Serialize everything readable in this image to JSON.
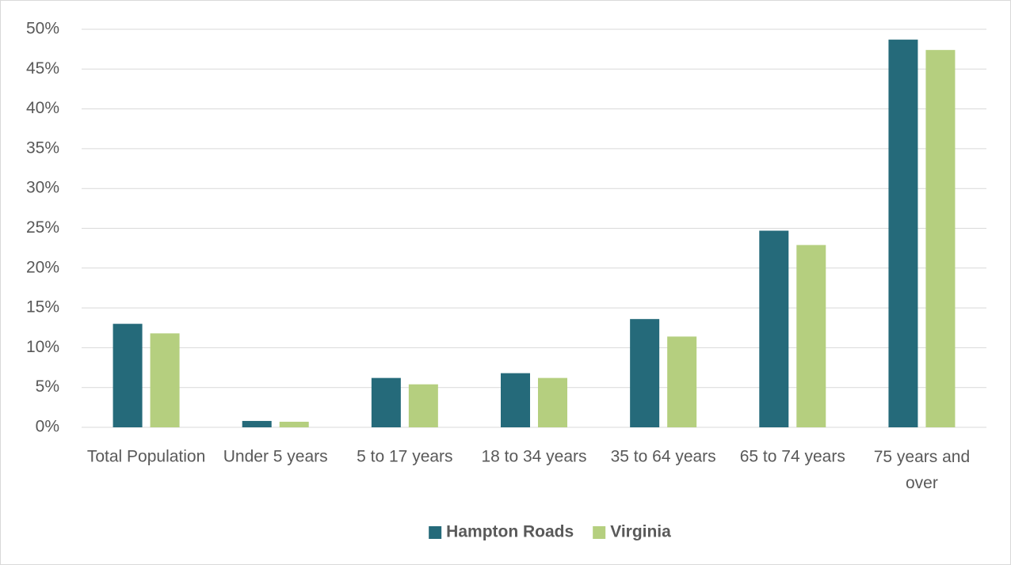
{
  "chart_data": {
    "type": "bar",
    "categories": [
      "Total Population",
      "Under 5 years",
      "5 to 17 years",
      "18 to 34 years",
      "35 to 64 years",
      "65 to 74 years",
      "75 years and over"
    ],
    "series": [
      {
        "name": "Hampton Roads",
        "color": "#256a7a",
        "values": [
          13.0,
          0.8,
          6.2,
          6.8,
          13.6,
          24.7,
          48.7
        ]
      },
      {
        "name": "Virginia",
        "color": "#b5cf7f",
        "values": [
          11.8,
          0.7,
          5.4,
          6.2,
          11.4,
          22.9,
          47.4
        ]
      }
    ],
    "ylim": [
      0,
      50
    ],
    "yticks": [
      {
        "value": 0,
        "label": "0%"
      },
      {
        "value": 5,
        "label": "5%"
      },
      {
        "value": 10,
        "label": "10%"
      },
      {
        "value": 15,
        "label": "15%"
      },
      {
        "value": 20,
        "label": "20%"
      },
      {
        "value": 25,
        "label": "25%"
      },
      {
        "value": 30,
        "label": "30%"
      },
      {
        "value": 35,
        "label": "35%"
      },
      {
        "value": 40,
        "label": "40%"
      },
      {
        "value": 45,
        "label": "45%"
      },
      {
        "value": 50,
        "label": "50%"
      }
    ],
    "grid": true,
    "legend": "bottom"
  }
}
